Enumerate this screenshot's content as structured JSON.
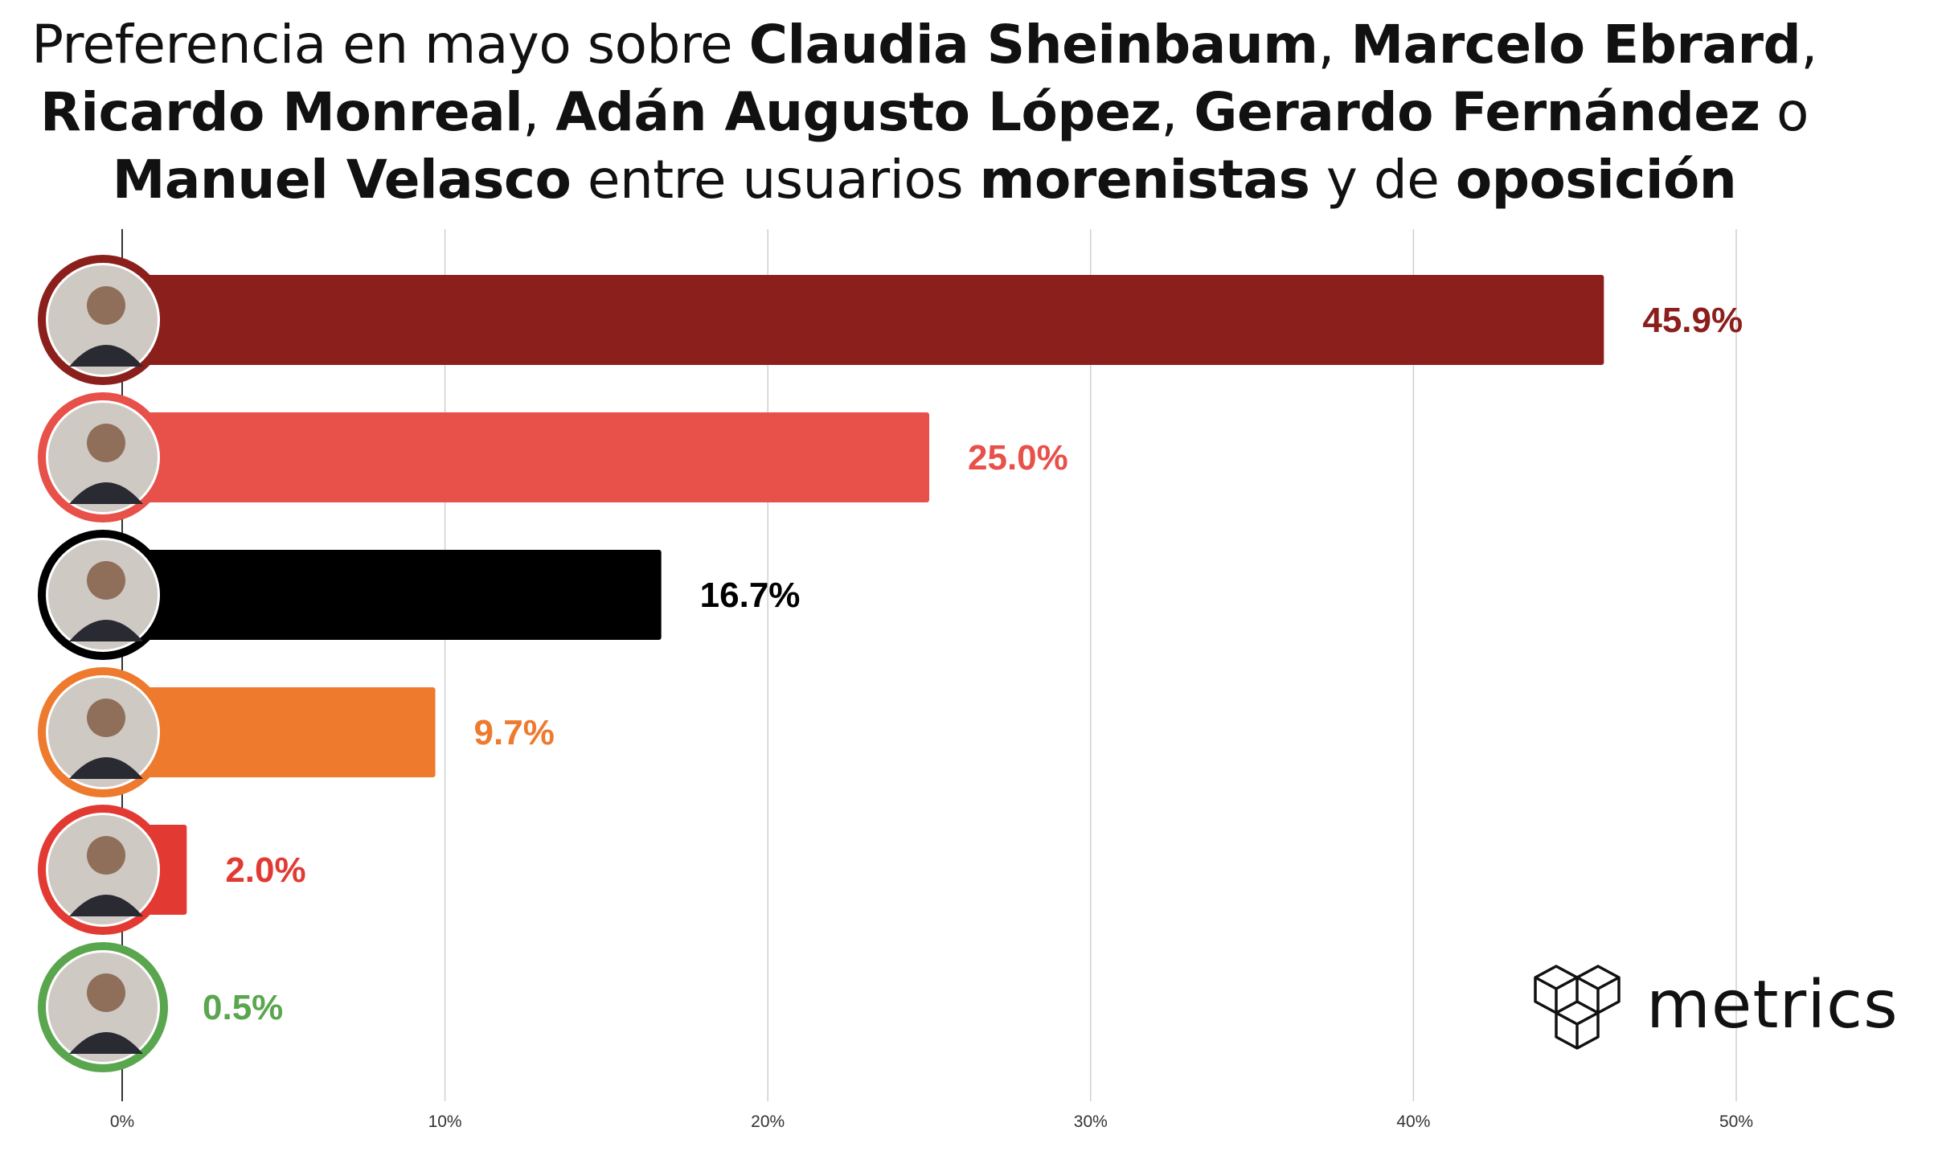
{
  "title": {
    "parts": [
      {
        "text": "Preferencia en mayo sobre ",
        "bold": false
      },
      {
        "text": "Claudia Sheinbaum",
        "bold": true
      },
      {
        "text": ", ",
        "bold": false
      },
      {
        "text": "Marcelo Ebrard",
        "bold": true
      },
      {
        "text": ",",
        "bold": false
      },
      {
        "text": "\n",
        "bold": false
      },
      {
        "text": "Ricardo Monreal",
        "bold": true
      },
      {
        "text": ", ",
        "bold": false
      },
      {
        "text": "Adán Augusto López",
        "bold": true
      },
      {
        "text": ", ",
        "bold": false
      },
      {
        "text": "Gerardo Fernández",
        "bold": true
      },
      {
        "text": " o",
        "bold": false
      },
      {
        "text": "\n",
        "bold": false
      },
      {
        "text": "Manuel Velasco",
        "bold": true
      },
      {
        "text": " entre usuarios ",
        "bold": false
      },
      {
        "text": "morenistas",
        "bold": true
      },
      {
        "text": " y de ",
        "bold": false
      },
      {
        "text": "oposición",
        "bold": true
      }
    ]
  },
  "chart_data": {
    "type": "bar",
    "orientation": "horizontal",
    "title": "Preferencia en mayo sobre Claudia Sheinbaum, Marcelo Ebrard, Ricardo Monreal, Adán Augusto López, Gerardo Fernández o Manuel Velasco entre usuarios morenistas y de oposición",
    "xlim": [
      0,
      50
    ],
    "x_ticks": [
      0,
      10,
      20,
      30,
      40,
      50
    ],
    "x_tick_labels": [
      "0%",
      "10%",
      "20%",
      "30%",
      "40%",
      "50%"
    ],
    "grid": true,
    "bars": [
      {
        "avatar_icon": "person-photo-icon",
        "value": 45.9,
        "label": "45.9%",
        "color": "#8b1f1c"
      },
      {
        "avatar_icon": "person-photo-icon",
        "value": 25.0,
        "label": "25.0%",
        "color": "#e8504a"
      },
      {
        "avatar_icon": "person-photo-icon",
        "value": 16.7,
        "label": "16.7%",
        "color": "#000000"
      },
      {
        "avatar_icon": "person-photo-icon",
        "value": 9.7,
        "label": "9.7%",
        "color": "#ee7a2e"
      },
      {
        "avatar_icon": "person-photo-icon",
        "value": 2.0,
        "label": "2.0%",
        "color": "#e23a33"
      },
      {
        "avatar_icon": "person-photo-icon",
        "value": 0.5,
        "label": "0.5%",
        "color": "#5aa64e"
      }
    ]
  },
  "logo": {
    "text": "metrics",
    "icon": "cubes-logo-icon"
  }
}
